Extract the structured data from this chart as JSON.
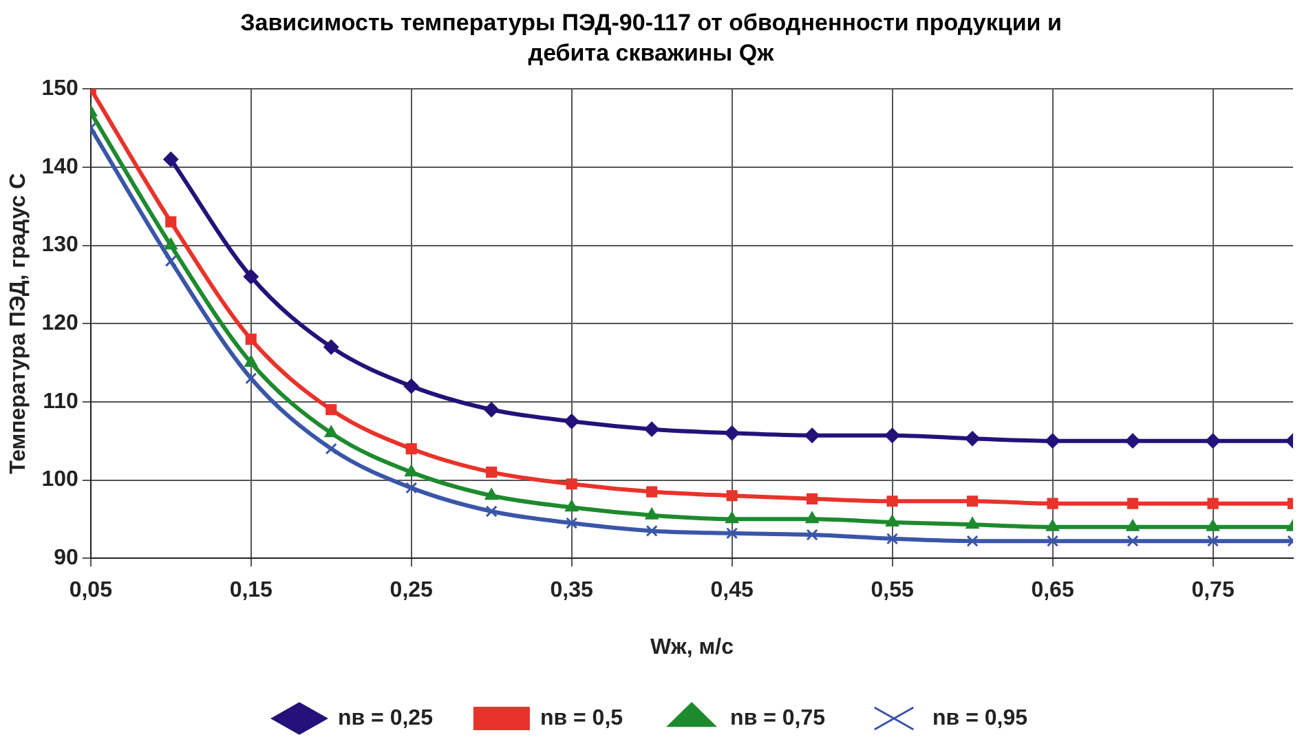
{
  "chart_data": {
    "type": "line",
    "title": "Зависимость температуры ПЭД-90-117 от обводненности продукции и дебита скважины Qж",
    "xlabel": "Wж, м/с",
    "ylabel": "Температура ПЭД, градус С",
    "x": [
      0.05,
      0.1,
      0.15,
      0.2,
      0.25,
      0.3,
      0.35,
      0.4,
      0.45,
      0.5,
      0.55,
      0.6,
      0.65,
      0.7,
      0.75,
      0.8
    ],
    "series": [
      {
        "name": "nв = 0,25",
        "color": "#24127a",
        "marker": "diamond",
        "values": [
          null,
          141,
          126,
          117,
          112,
          109,
          107.5,
          106.5,
          106,
          105.7,
          105.7,
          105.3,
          105,
          105,
          105,
          105
        ]
      },
      {
        "name": "nв = 0,5",
        "color": "#e8332a",
        "marker": "square",
        "values": [
          150,
          133,
          118,
          109,
          104,
          101,
          99.5,
          98.5,
          98,
          97.6,
          97.3,
          97.3,
          97,
          97,
          97,
          97
        ]
      },
      {
        "name": "nв = 0,75",
        "color": "#1e8a2e",
        "marker": "triangle",
        "values": [
          147,
          130,
          115,
          106,
          101,
          98,
          96.5,
          95.5,
          95,
          95,
          94.6,
          94.3,
          94,
          94,
          94,
          94
        ]
      },
      {
        "name": "nв = 0,95",
        "color": "#3a56a8",
        "marker": "cross",
        "values": [
          145,
          128,
          113,
          104,
          99,
          96,
          94.5,
          93.5,
          93.2,
          93,
          92.5,
          92.2,
          92.2,
          92.2,
          92.2,
          92.2
        ]
      }
    ],
    "xlim": [
      0.05,
      0.8
    ],
    "xticks": [
      {
        "value": 0.05,
        "label": "0,05"
      },
      {
        "value": 0.15,
        "label": "0,15"
      },
      {
        "value": 0.25,
        "label": "0,25"
      },
      {
        "value": 0.35,
        "label": "0,35"
      },
      {
        "value": 0.45,
        "label": "0,45"
      },
      {
        "value": 0.55,
        "label": "0,55"
      },
      {
        "value": 0.65,
        "label": "0,65"
      },
      {
        "value": 0.75,
        "label": "0,75"
      }
    ],
    "ylim": [
      90,
      150
    ],
    "yticks": [
      90,
      100,
      110,
      120,
      130,
      140,
      150
    ],
    "grid": true,
    "legend": "bottom",
    "line_style": "solid"
  }
}
